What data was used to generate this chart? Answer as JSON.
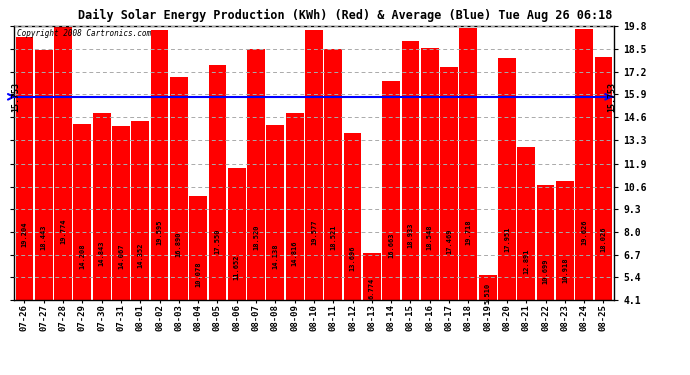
{
  "title": "Daily Solar Energy Production (KWh) (Red) & Average (Blue) Tue Aug 26 06:18",
  "copyright": "Copyright 2008 Cartronics.com",
  "average_label": "15.753",
  "average_value": 15.753,
  "bar_color": "#FF0000",
  "average_line_color": "#0000FF",
  "background_color": "#FFFFFF",
  "plot_bg_color": "#FFFFFF",
  "grid_color": "#AAAAAA",
  "categories": [
    "07-26",
    "07-27",
    "07-28",
    "07-29",
    "07-30",
    "07-31",
    "08-01",
    "08-02",
    "08-03",
    "08-04",
    "08-05",
    "08-06",
    "08-07",
    "08-08",
    "08-09",
    "08-10",
    "08-11",
    "08-12",
    "08-13",
    "08-14",
    "08-15",
    "08-16",
    "08-17",
    "08-18",
    "08-19",
    "08-20",
    "08-21",
    "08-22",
    "08-23",
    "08-24",
    "08-25"
  ],
  "values": [
    19.204,
    18.443,
    19.774,
    14.208,
    14.843,
    14.067,
    14.352,
    19.595,
    16.89,
    10.078,
    17.55,
    11.652,
    18.52,
    14.138,
    14.816,
    19.577,
    18.521,
    13.696,
    6.774,
    16.663,
    18.933,
    18.548,
    17.469,
    19.718,
    5.51,
    17.951,
    12.891,
    10.699,
    10.918,
    19.626,
    18.026
  ],
  "ylim_min": 4.1,
  "ylim_max": 19.8,
  "yticks": [
    4.1,
    5.4,
    6.7,
    8.0,
    9.3,
    10.6,
    11.9,
    13.3,
    14.6,
    15.9,
    17.2,
    18.5,
    19.8
  ],
  "ytick_labels": [
    "4.1",
    "5.4",
    "6.7",
    "8.0",
    "9.3",
    "10.6",
    "11.9",
    "13.3",
    "14.6",
    "15.9",
    "17.2",
    "18.5",
    "19.8"
  ]
}
